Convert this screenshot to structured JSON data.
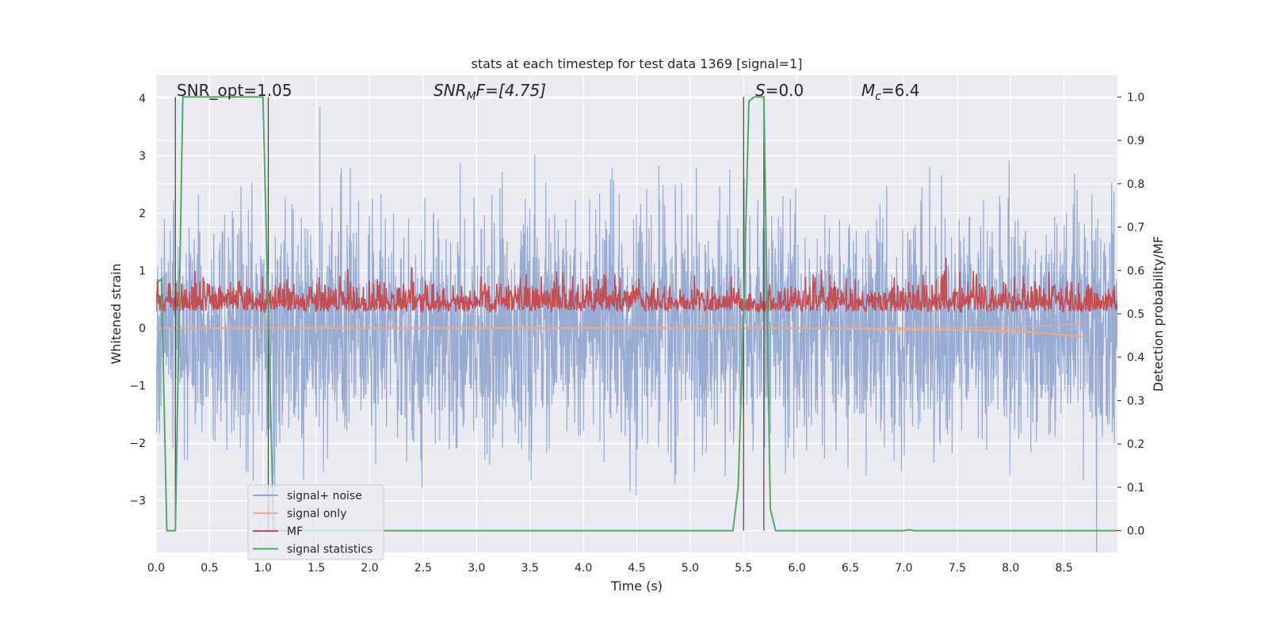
{
  "chart_data": {
    "type": "line",
    "title": "stats at each timestep for test data 1369 [signal=1]",
    "xlabel": "Time (s)",
    "ylabel_left": "Whitened strain",
    "ylabel_right": "Detection probability/MF",
    "xlim": [
      0.0,
      9.0
    ],
    "ylim_left": [
      -3.9,
      4.4
    ],
    "ylim_right": [
      -0.05,
      1.05
    ],
    "xticks": [
      "0.0",
      "0.5",
      "1.0",
      "1.5",
      "2.0",
      "2.5",
      "3.0",
      "3.5",
      "4.0",
      "4.5",
      "5.0",
      "5.5",
      "6.0",
      "6.5",
      "7.0",
      "7.5",
      "8.0",
      "8.5"
    ],
    "yticks_left": [
      "−3",
      "−2",
      "−1",
      "0",
      "1",
      "2",
      "3",
      "4"
    ],
    "yticks_right": [
      "0.0",
      "0.1",
      "0.2",
      "0.3",
      "0.4",
      "0.5",
      "0.6",
      "0.7",
      "0.8",
      "0.9",
      "1.0"
    ],
    "grid": true,
    "legend_position": "lower-left",
    "annotations": {
      "snr_opt": "SNR_opt=1.05",
      "snr_mf_sym": "SNR",
      "snr_mf_sub": "M",
      "snr_mf_rest": "F=[4.75]",
      "s_sym": "S",
      "s_rest": "=0.0",
      "mc_sym": "M",
      "mc_sub": "c",
      "mc_rest": "=6.4"
    },
    "vertical_lines_x": [
      0.18,
      1.05,
      5.5,
      5.69
    ],
    "series": [
      {
        "name": "signal+ noise",
        "color": "#8fa5cf",
        "axis": "left",
        "kind": "noise",
        "amplitude_std": 1.0,
        "x_range": [
          0.0,
          9.0
        ]
      },
      {
        "name": "signal only",
        "color": "#e9a98c",
        "axis": "left",
        "kind": "chirp",
        "x": [
          0.0,
          6.0,
          7.0,
          7.5,
          8.0,
          8.3,
          8.5,
          8.68
        ],
        "y": [
          0.0,
          0.0,
          -0.02,
          -0.03,
          -0.05,
          -0.08,
          -0.12,
          -0.15
        ]
      },
      {
        "name": "MF",
        "color": "#c44e52",
        "axis": "right",
        "kind": "noise",
        "baseline": 0.52,
        "amplitude_std": 0.025,
        "x_range": [
          0.0,
          9.0
        ]
      },
      {
        "name": "signal statistics",
        "color": "#55a868",
        "axis": "right",
        "kind": "line",
        "x": [
          0.0,
          0.05,
          0.1,
          0.15,
          0.18,
          0.25,
          0.5,
          1.0,
          1.05,
          1.1,
          1.15,
          2.0,
          3.0,
          4.0,
          5.0,
          5.3,
          5.4,
          5.45,
          5.5,
          5.55,
          5.6,
          5.69,
          5.75,
          5.8,
          6.0,
          7.0,
          7.05,
          7.1,
          8.0,
          9.0
        ],
        "y": [
          0.57,
          0.58,
          0.0,
          0.0,
          0.0,
          1.0,
          1.0,
          1.0,
          0.5,
          0.0,
          0.0,
          0.0,
          0.0,
          0.0,
          0.0,
          0.0,
          0.0,
          0.1,
          0.5,
          0.99,
          1.0,
          1.0,
          0.05,
          0.0,
          0.0,
          0.0,
          0.002,
          0.0,
          0.0,
          0.0
        ]
      }
    ]
  }
}
